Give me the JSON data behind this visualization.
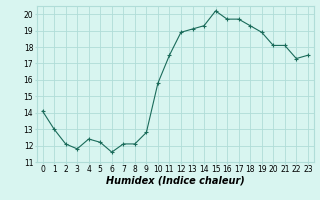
{
  "x": [
    0,
    1,
    2,
    3,
    4,
    5,
    6,
    7,
    8,
    9,
    10,
    11,
    12,
    13,
    14,
    15,
    16,
    17,
    18,
    19,
    20,
    21,
    22,
    23
  ],
  "y": [
    14.1,
    13.0,
    12.1,
    11.8,
    12.4,
    12.2,
    11.6,
    12.1,
    12.1,
    12.8,
    15.8,
    17.5,
    18.9,
    19.1,
    19.3,
    20.2,
    19.7,
    19.7,
    19.3,
    18.9,
    18.1,
    18.1,
    17.3,
    17.5
  ],
  "line_color": "#1a6b5a",
  "marker": "+",
  "marker_size": 3,
  "bg_color": "#d8f5f0",
  "grid_color": "#b0ddd8",
  "xlabel": "Humidex (Indice chaleur)",
  "xlim": [
    -0.5,
    23.5
  ],
  "ylim": [
    11,
    20.5
  ],
  "yticks": [
    11,
    12,
    13,
    14,
    15,
    16,
    17,
    18,
    19,
    20
  ],
  "xticks": [
    0,
    1,
    2,
    3,
    4,
    5,
    6,
    7,
    8,
    9,
    10,
    11,
    12,
    13,
    14,
    15,
    16,
    17,
    18,
    19,
    20,
    21,
    22,
    23
  ],
  "tick_fontsize": 5.5,
  "xlabel_fontsize": 7.0,
  "xlabel_bold": true
}
